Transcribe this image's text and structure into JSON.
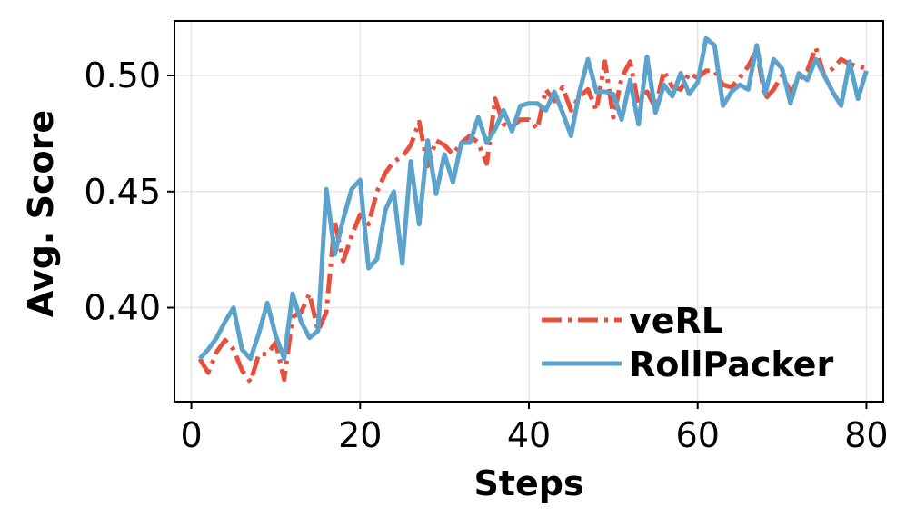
{
  "chart_data": {
    "type": "line",
    "title": "",
    "xlabel": "Steps",
    "ylabel": "Avg. Score",
    "xlim": [
      -2,
      82
    ],
    "ylim": [
      0.3595,
      0.5235
    ],
    "xticks": [
      0,
      20,
      40,
      60,
      80
    ],
    "yticks": [
      0.4,
      0.45,
      0.5
    ],
    "xtick_labels": [
      "0",
      "20",
      "40",
      "60",
      "80"
    ],
    "ytick_labels": [
      "0.40",
      "0.45",
      "0.50"
    ],
    "grid": true,
    "legend_position": "lower-right",
    "series": [
      {
        "name": "veRL",
        "color": "#e8503d",
        "style": "dashdot",
        "x": [
          1,
          2,
          3,
          4,
          5,
          6,
          7,
          8,
          9,
          10,
          11,
          12,
          13,
          14,
          15,
          16,
          17,
          18,
          19,
          20,
          21,
          22,
          23,
          24,
          25,
          26,
          27,
          28,
          29,
          30,
          31,
          32,
          33,
          34,
          35,
          36,
          37,
          38,
          39,
          40,
          41,
          42,
          43,
          44,
          45,
          46,
          47,
          48,
          49,
          50,
          51,
          52,
          53,
          54,
          55,
          56,
          57,
          58,
          59,
          60,
          61,
          62,
          63,
          64,
          65,
          66,
          67,
          68,
          69,
          70,
          71,
          72,
          73,
          74,
          75,
          76,
          77,
          78,
          79,
          80
        ],
        "values": [
          0.378,
          0.372,
          0.381,
          0.386,
          0.382,
          0.373,
          0.368,
          0.38,
          0.38,
          0.385,
          0.369,
          0.396,
          0.398,
          0.406,
          0.39,
          0.398,
          0.437,
          0.42,
          0.431,
          0.44,
          0.436,
          0.45,
          0.458,
          0.463,
          0.465,
          0.47,
          0.48,
          0.461,
          0.472,
          0.47,
          0.466,
          0.471,
          0.474,
          0.471,
          0.462,
          0.49,
          0.479,
          0.478,
          0.481,
          0.481,
          0.477,
          0.494,
          0.489,
          0.495,
          0.485,
          0.491,
          0.494,
          0.485,
          0.506,
          0.482,
          0.499,
          0.506,
          0.487,
          0.493,
          0.486,
          0.502,
          0.495,
          0.494,
          0.501,
          0.499,
          0.502,
          0.502,
          0.496,
          0.495,
          0.499,
          0.504,
          0.511,
          0.49,
          0.494,
          0.5,
          0.493,
          0.498,
          0.502,
          0.512,
          0.5,
          0.503,
          0.507,
          0.505,
          0.504,
          0.503
        ]
      },
      {
        "name": "RollPacker",
        "color": "#5ba2cd",
        "style": "solid",
        "x": [
          1,
          2,
          3,
          4,
          5,
          6,
          7,
          8,
          9,
          10,
          11,
          12,
          13,
          14,
          15,
          16,
          17,
          18,
          19,
          20,
          21,
          22,
          23,
          24,
          25,
          26,
          27,
          28,
          29,
          30,
          31,
          32,
          33,
          34,
          35,
          36,
          37,
          38,
          39,
          40,
          41,
          42,
          43,
          44,
          45,
          46,
          47,
          48,
          49,
          50,
          51,
          52,
          53,
          54,
          55,
          56,
          57,
          58,
          59,
          60,
          61,
          62,
          63,
          64,
          65,
          66,
          67,
          68,
          69,
          70,
          71,
          72,
          73,
          74,
          75,
          76,
          77,
          78,
          79,
          80
        ],
        "values": [
          0.378,
          0.382,
          0.387,
          0.394,
          0.4,
          0.382,
          0.378,
          0.389,
          0.402,
          0.388,
          0.378,
          0.406,
          0.394,
          0.387,
          0.39,
          0.451,
          0.423,
          0.438,
          0.451,
          0.455,
          0.417,
          0.421,
          0.442,
          0.45,
          0.419,
          0.463,
          0.436,
          0.472,
          0.449,
          0.466,
          0.454,
          0.471,
          0.471,
          0.482,
          0.471,
          0.477,
          0.485,
          0.476,
          0.487,
          0.488,
          0.488,
          0.485,
          0.493,
          0.484,
          0.474,
          0.493,
          0.507,
          0.493,
          0.493,
          0.492,
          0.481,
          0.498,
          0.479,
          0.508,
          0.484,
          0.496,
          0.491,
          0.501,
          0.492,
          0.497,
          0.516,
          0.513,
          0.487,
          0.493,
          0.496,
          0.494,
          0.513,
          0.492,
          0.507,
          0.503,
          0.488,
          0.501,
          0.498,
          0.507,
          0.5,
          0.493,
          0.487,
          0.506,
          0.49,
          0.502
        ]
      }
    ]
  }
}
